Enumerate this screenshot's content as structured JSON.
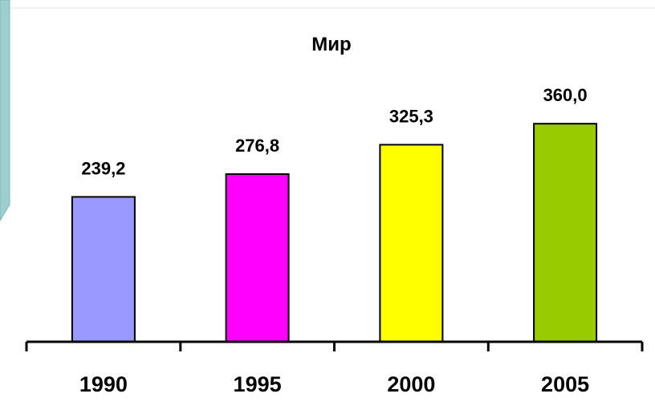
{
  "chart_data": {
    "type": "bar",
    "title": "Мир",
    "categories": [
      "1990",
      "1995",
      "2000",
      "2005"
    ],
    "values": [
      239.2,
      276.8,
      325.3,
      360.0
    ],
    "value_labels": [
      "239,2",
      "276,8",
      "325,3",
      "360,0"
    ],
    "colors": [
      "#9999ff",
      "#ff00ff",
      "#ffff00",
      "#99cc00"
    ],
    "xlabel": "",
    "ylabel": "",
    "ylim": [
      0,
      470
    ],
    "grid": false,
    "legend": "none"
  },
  "theme": {
    "accent_color": "#9ecfcf",
    "accent_border": "#7fb5b5"
  }
}
